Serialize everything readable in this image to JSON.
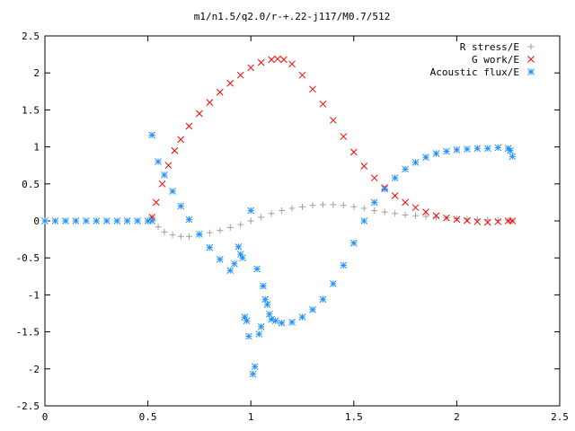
{
  "chart_data": {
    "type": "scatter",
    "title": "m1/n1.5/q2.0/r-+.22-j117/M0.7/512",
    "xlabel": "",
    "ylabel": "",
    "xlim": [
      0,
      2.5
    ],
    "ylim": [
      -2.5,
      2.5
    ],
    "xticks": [
      "0",
      "0.5",
      "1",
      "1.5",
      "2",
      "2.5"
    ],
    "yticks": [
      "2.5",
      "2",
      "1.5",
      "1",
      "0.5",
      "0",
      "-0.5",
      "-1",
      "-1.5",
      "-2",
      "-2.5"
    ],
    "xtick_values": [
      0,
      0.5,
      1,
      1.5,
      2,
      2.5
    ],
    "ytick_values": [
      2.5,
      2,
      1.5,
      1,
      0.5,
      0,
      -0.5,
      -1,
      -1.5,
      -2,
      -2.5
    ],
    "legend_position": "top-right",
    "grid": false,
    "series": [
      {
        "name": "R stress/E",
        "marker": "plus",
        "color": "#a0a0a0",
        "x": [
          0.52,
          0.55,
          0.58,
          0.62,
          0.66,
          0.7,
          0.75,
          0.8,
          0.85,
          0.9,
          0.95,
          1.0,
          1.05,
          1.1,
          1.15,
          1.2,
          1.25,
          1.3,
          1.35,
          1.4,
          1.45,
          1.5,
          1.55,
          1.6,
          1.65,
          1.7,
          1.75,
          1.8,
          1.85,
          1.9,
          1.95,
          2.0,
          2.05,
          2.1,
          2.15,
          2.2,
          2.25,
          2.27
        ],
        "y": [
          0.05,
          -0.08,
          -0.15,
          -0.19,
          -0.21,
          -0.21,
          -0.19,
          -0.16,
          -0.13,
          -0.09,
          -0.05,
          0.0,
          0.05,
          0.1,
          0.14,
          0.17,
          0.19,
          0.21,
          0.22,
          0.22,
          0.21,
          0.19,
          0.17,
          0.14,
          0.12,
          0.1,
          0.08,
          0.07,
          0.06,
          0.05,
          0.04,
          0.03,
          0.025,
          0.02,
          0.015,
          0.01,
          0.005,
          0.0
        ]
      },
      {
        "name": "G work/E",
        "marker": "cross",
        "color": "#ff0000",
        "x": [
          0.52,
          0.54,
          0.57,
          0.6,
          0.63,
          0.66,
          0.7,
          0.75,
          0.8,
          0.85,
          0.9,
          0.95,
          1.0,
          1.05,
          1.1,
          1.13,
          1.16,
          1.2,
          1.25,
          1.3,
          1.35,
          1.4,
          1.45,
          1.5,
          1.55,
          1.6,
          1.65,
          1.7,
          1.75,
          1.8,
          1.85,
          1.9,
          1.95,
          2.0,
          2.05,
          2.1,
          2.15,
          2.2,
          2.25,
          2.27
        ],
        "y": [
          0.05,
          0.25,
          0.5,
          0.75,
          0.95,
          1.1,
          1.28,
          1.45,
          1.6,
          1.74,
          1.86,
          1.97,
          2.07,
          2.14,
          2.18,
          2.19,
          2.18,
          2.12,
          1.97,
          1.78,
          1.58,
          1.36,
          1.14,
          0.93,
          0.74,
          0.58,
          0.45,
          0.34,
          0.25,
          0.18,
          0.12,
          0.07,
          0.04,
          0.02,
          0.005,
          -0.01,
          -0.02,
          -0.01,
          0.0,
          0.0
        ]
      },
      {
        "name": "Acoustic flux/E",
        "marker": "star",
        "color": "#1e90ff",
        "x": [
          0.0,
          0.05,
          0.1,
          0.15,
          0.2,
          0.25,
          0.3,
          0.35,
          0.4,
          0.45,
          0.5,
          0.52,
          0.52,
          0.55,
          0.58,
          0.62,
          0.66,
          0.7,
          0.75,
          0.8,
          0.85,
          0.9,
          0.92,
          0.94,
          0.95,
          0.96,
          0.97,
          0.98,
          0.99,
          1.0,
          1.01,
          1.02,
          1.03,
          1.04,
          1.05,
          1.06,
          1.07,
          1.08,
          1.09,
          1.1,
          1.12,
          1.15,
          1.2,
          1.25,
          1.3,
          1.35,
          1.4,
          1.45,
          1.5,
          1.55,
          1.6,
          1.65,
          1.7,
          1.75,
          1.8,
          1.85,
          1.9,
          1.95,
          2.0,
          2.05,
          2.1,
          2.15,
          2.2,
          2.25,
          2.26,
          2.27
        ],
        "y": [
          0,
          0,
          0,
          0,
          0,
          0,
          0,
          0,
          0,
          0,
          0,
          0.0,
          1.16,
          0.8,
          0.62,
          0.4,
          0.2,
          0.02,
          -0.18,
          -0.36,
          -0.52,
          -0.67,
          -0.58,
          -0.35,
          -0.45,
          -0.5,
          -1.3,
          -1.35,
          -1.56,
          0.14,
          -2.07,
          -1.97,
          -0.65,
          -1.53,
          -1.43,
          -0.88,
          -1.06,
          -1.13,
          -1.26,
          -1.33,
          -1.35,
          -1.38,
          -1.37,
          -1.3,
          -1.2,
          -1.06,
          -0.85,
          -0.6,
          -0.3,
          0.0,
          0.25,
          0.43,
          0.58,
          0.7,
          0.79,
          0.86,
          0.91,
          0.94,
          0.96,
          0.97,
          0.98,
          0.98,
          0.99,
          0.98,
          0.95,
          0.87
        ]
      }
    ]
  }
}
